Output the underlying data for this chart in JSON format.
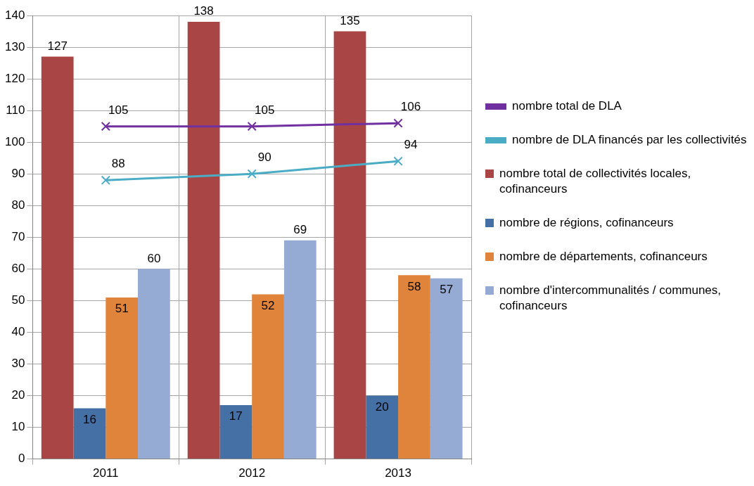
{
  "chart_data": {
    "type": "bar",
    "categories": [
      "2011",
      "2012",
      "2013"
    ],
    "series": [
      {
        "name": "nombre total de DLA",
        "type": "line",
        "color": "#7030a0",
        "values": [
          105,
          105,
          106
        ]
      },
      {
        "name": "nombre de DLA financés par les collectivités",
        "type": "line",
        "color": "#4bacc6",
        "values": [
          88,
          90,
          94
        ]
      },
      {
        "name": "nombre total de collectivités locales, cofinanceurs",
        "color": "#a94544",
        "values": [
          127,
          138,
          135
        ]
      },
      {
        "name": "nombre de régions, cofinanceurs",
        "color": "#4470a6",
        "values": [
          16,
          17,
          20
        ]
      },
      {
        "name": "nombre de départements, cofinanceurs",
        "color": "#e0843c",
        "values": [
          51,
          52,
          58
        ]
      },
      {
        "name": "nombre d'intercommunalités / communes, cofinanceurs",
        "color": "#95abd3",
        "values": [
          60,
          69,
          57
        ]
      }
    ],
    "ylim": [
      0,
      140
    ],
    "yticks": [
      0,
      10,
      20,
      30,
      40,
      50,
      60,
      70,
      80,
      90,
      100,
      110,
      120,
      130,
      140
    ],
    "grid": true,
    "legend": "right",
    "marker": "cross",
    "data_labels": true
  }
}
